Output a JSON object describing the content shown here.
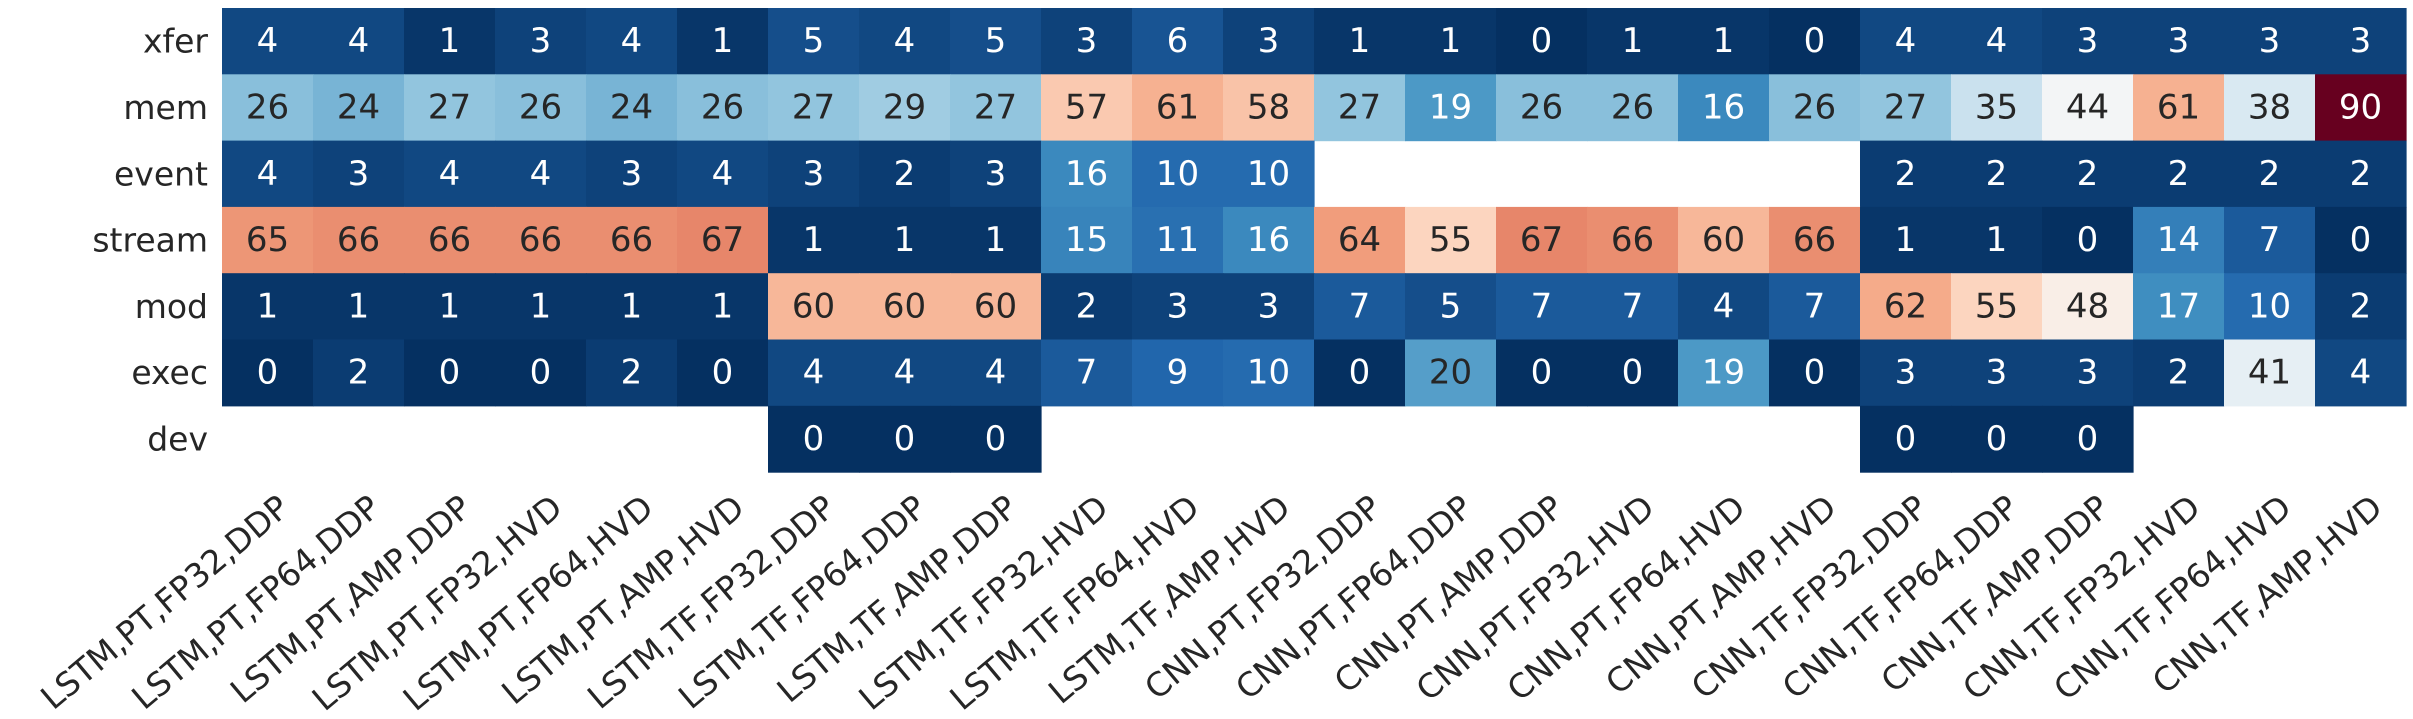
{
  "chart_data": {
    "type": "heatmap",
    "title": "",
    "xlabel": "",
    "ylabel": "",
    "colormap": "RdBu_r",
    "value_range": [
      0,
      90
    ],
    "colorbar": false,
    "rows": [
      "xfer",
      "mem",
      "event",
      "stream",
      "mod",
      "exec",
      "dev"
    ],
    "columns": [
      "LSTM,PT,FP32,DDP",
      "LSTM,PT,FP64,DDP",
      "LSTM,PT,AMP,DDP",
      "LSTM,PT,FP32,HVD",
      "LSTM,PT,FP64,HVD",
      "LSTM,PT,AMP,HVD",
      "LSTM,TF,FP32,DDP",
      "LSTM,TF,FP64,DDP",
      "LSTM,TF,AMP,DDP",
      "LSTM,TF,FP32,HVD",
      "LSTM,TF,FP64,HVD",
      "LSTM,TF,AMP,HVD",
      "CNN,PT,FP32,DDP",
      "CNN,PT,FP64,DDP",
      "CNN,PT,AMP,DDP",
      "CNN,PT,FP32,HVD",
      "CNN,PT,FP64,HVD",
      "CNN,PT,AMP,HVD",
      "CNN,TF,FP32,DDP",
      "CNN,TF,FP64,DDP",
      "CNN,TF,AMP,DDP",
      "CNN,TF,FP32,HVD",
      "CNN,TF,FP64,HVD",
      "CNN,TF,AMP,HVD"
    ],
    "values": [
      [
        4,
        4,
        1,
        3,
        4,
        1,
        5,
        4,
        5,
        3,
        6,
        3,
        1,
        1,
        0,
        1,
        1,
        0,
        4,
        4,
        3,
        3,
        3,
        3
      ],
      [
        26,
        24,
        27,
        26,
        24,
        26,
        27,
        29,
        27,
        57,
        61,
        58,
        27,
        19,
        26,
        26,
        16,
        26,
        27,
        35,
        44,
        61,
        38,
        90
      ],
      [
        4,
        3,
        4,
        4,
        3,
        4,
        3,
        2,
        3,
        16,
        10,
        10,
        null,
        null,
        null,
        null,
        null,
        null,
        2,
        2,
        2,
        2,
        2,
        2
      ],
      [
        65,
        66,
        66,
        66,
        66,
        67,
        1,
        1,
        1,
        15,
        11,
        16,
        64,
        55,
        67,
        66,
        60,
        66,
        1,
        1,
        0,
        14,
        7,
        0
      ],
      [
        1,
        1,
        1,
        1,
        1,
        1,
        60,
        60,
        60,
        2,
        3,
        3,
        7,
        5,
        7,
        7,
        4,
        7,
        62,
        55,
        48,
        17,
        10,
        2
      ],
      [
        0,
        2,
        0,
        0,
        2,
        0,
        4,
        4,
        4,
        7,
        9,
        10,
        0,
        20,
        0,
        0,
        19,
        0,
        3,
        3,
        3,
        2,
        41,
        4
      ],
      [
        null,
        null,
        null,
        null,
        null,
        null,
        0,
        0,
        0,
        null,
        null,
        null,
        null,
        null,
        null,
        null,
        null,
        null,
        0,
        0,
        0,
        null,
        null,
        null
      ]
    ]
  }
}
